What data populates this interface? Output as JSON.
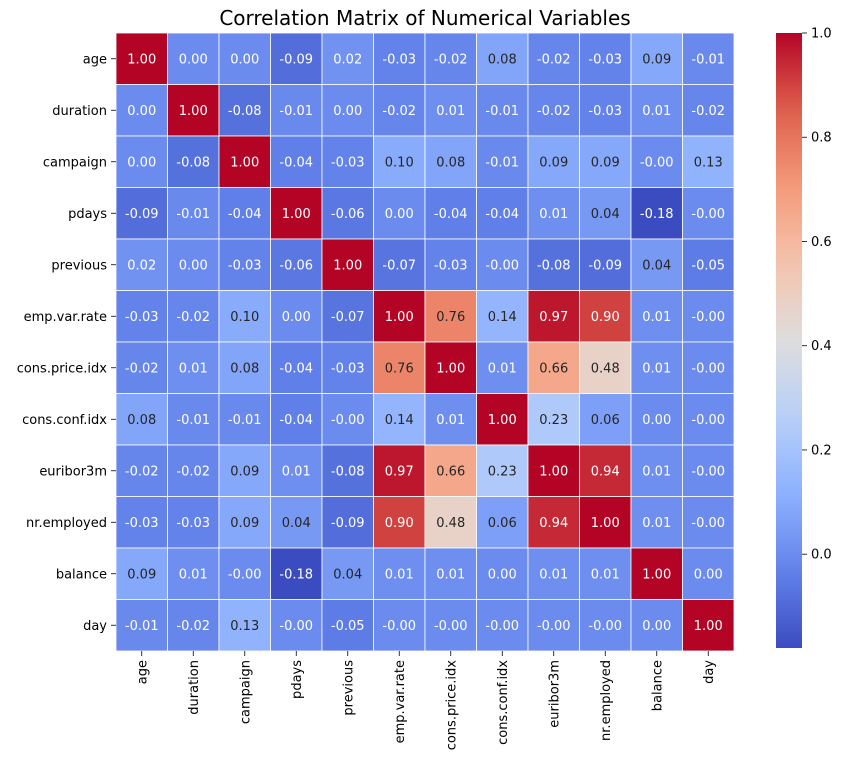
{
  "chart_data": {
    "type": "heatmap",
    "title": "Correlation Matrix of Numerical Variables",
    "colormap": "coolwarm",
    "labels": [
      "age",
      "duration",
      "campaign",
      "pdays",
      "previous",
      "emp.var.rate",
      "cons.price.idx",
      "cons.conf.idx",
      "euribor3m",
      "nr.employed",
      "balance",
      "day"
    ],
    "values": [
      [
        1.0,
        0.0,
        0.0,
        -0.09,
        0.02,
        -0.03,
        -0.02,
        0.08,
        -0.02,
        -0.03,
        0.09,
        -0.01
      ],
      [
        0.0,
        1.0,
        -0.08,
        -0.01,
        0.0,
        -0.02,
        0.01,
        -0.01,
        -0.02,
        -0.03,
        0.01,
        -0.02
      ],
      [
        0.0,
        -0.08,
        1.0,
        -0.04,
        -0.03,
        0.1,
        0.08,
        -0.01,
        0.09,
        0.09,
        -0.0,
        0.13
      ],
      [
        -0.09,
        -0.01,
        -0.04,
        1.0,
        -0.06,
        0.0,
        -0.04,
        -0.04,
        0.01,
        0.04,
        -0.18,
        -0.0
      ],
      [
        0.02,
        0.0,
        -0.03,
        -0.06,
        1.0,
        -0.07,
        -0.03,
        -0.0,
        -0.08,
        -0.09,
        0.04,
        -0.05
      ],
      [
        -0.03,
        -0.02,
        0.1,
        0.0,
        -0.07,
        1.0,
        0.76,
        0.14,
        0.97,
        0.9,
        0.01,
        -0.0
      ],
      [
        -0.02,
        0.01,
        0.08,
        -0.04,
        -0.03,
        0.76,
        1.0,
        0.01,
        0.66,
        0.48,
        0.01,
        -0.0
      ],
      [
        0.08,
        -0.01,
        -0.01,
        -0.04,
        -0.0,
        0.14,
        0.01,
        1.0,
        0.23,
        0.06,
        0.0,
        -0.0
      ],
      [
        -0.02,
        -0.02,
        0.09,
        0.01,
        -0.08,
        0.97,
        0.66,
        0.23,
        1.0,
        0.94,
        0.01,
        -0.0
      ],
      [
        -0.03,
        -0.03,
        0.09,
        0.04,
        -0.09,
        0.9,
        0.48,
        0.06,
        0.94,
        1.0,
        0.01,
        -0.0
      ],
      [
        0.09,
        0.01,
        -0.0,
        -0.18,
        0.04,
        0.01,
        0.01,
        0.0,
        0.01,
        0.01,
        1.0,
        0.0
      ],
      [
        -0.01,
        -0.02,
        0.13,
        -0.0,
        -0.05,
        -0.0,
        -0.0,
        -0.0,
        -0.0,
        -0.0,
        0.0,
        1.0
      ]
    ],
    "vmin": -0.18,
    "vmax": 1.0,
    "colorbar_ticks": [
      "0.0",
      "0.2",
      "0.4",
      "0.6",
      "0.8",
      "1.0"
    ],
    "annotation_format": "0.00"
  }
}
